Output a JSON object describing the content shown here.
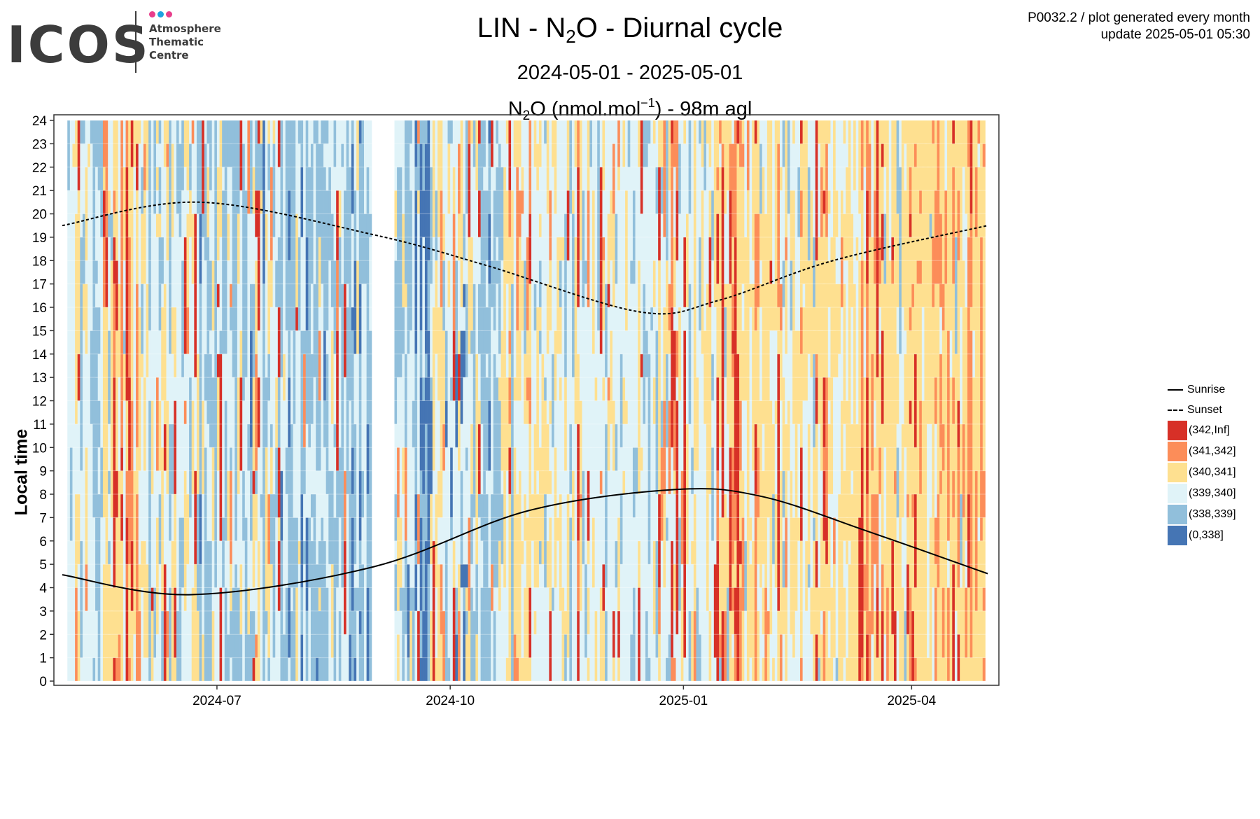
{
  "logo": {
    "wordmark": "ICOS",
    "line1": "Atmosphere",
    "line2": "Thematic",
    "line3": "Centre",
    "dot_colors": [
      "#e83e8c",
      "#1fa2e0",
      "#e83e8c"
    ]
  },
  "header": {
    "product": "P0032.2 / plot generated every month",
    "update": "update  2025-05-01 05:30"
  },
  "title": {
    "station": "LIN",
    "gas_base": "N",
    "gas_sub": "2",
    "gas_tail": "O",
    "suffix": "Diurnal cycle",
    "sep": " - "
  },
  "subtitle": "2024-05-01 - 2025-05-01",
  "subtitle2": {
    "base": "N",
    "sub": "2",
    "mid": "O (nmol.mol",
    "sup": "−1",
    "tail": ") - 98m agl"
  },
  "chart_data": {
    "type": "heatmap",
    "x_start": "2024-05-01",
    "x_end": "2025-05-01",
    "xticks": [
      "2024-07",
      "2024-10",
      "2025-01",
      "2025-04"
    ],
    "ylabel": "Local time",
    "ylim": [
      0,
      24
    ],
    "yticks": [
      0,
      1,
      2,
      3,
      4,
      5,
      6,
      7,
      8,
      9,
      10,
      11,
      12,
      13,
      14,
      15,
      16,
      17,
      18,
      19,
      20,
      21,
      22,
      23,
      24
    ],
    "grid": true,
    "legend_position": "right",
    "lines": [
      {
        "name": "Sunrise",
        "style": "solid",
        "points": [
          [
            "2024-05-01",
            4.55
          ],
          [
            "2024-06-21",
            3.7
          ],
          [
            "2024-09-01",
            4.9
          ],
          [
            "2024-11-01",
            7.3
          ],
          [
            "2024-12-29",
            8.2
          ],
          [
            "2025-02-01",
            7.9
          ],
          [
            "2025-03-15",
            6.4
          ],
          [
            "2025-05-01",
            4.6
          ]
        ]
      },
      {
        "name": "Sunset",
        "style": "dashed",
        "points": [
          [
            "2024-05-01",
            19.5
          ],
          [
            "2024-06-24",
            20.5
          ],
          [
            "2024-09-01",
            19.1
          ],
          [
            "2024-10-15",
            17.8
          ],
          [
            "2024-12-15",
            15.8
          ],
          [
            "2025-01-15",
            16.3
          ],
          [
            "2025-03-01",
            18.0
          ],
          [
            "2025-05-01",
            19.5
          ]
        ]
      }
    ],
    "bins": [
      {
        "label": "(342,Inf]",
        "color": "#d73027"
      },
      {
        "label": "(341,342]",
        "color": "#fc8d59"
      },
      {
        "label": "(340,341]",
        "color": "#fee090"
      },
      {
        "label": "(339,340]",
        "color": "#e0f3f8"
      },
      {
        "label": "(338,339]",
        "color": "#91bfdb"
      },
      {
        "label": "(0,338]",
        "color": "#4575b4"
      }
    ],
    "gaps": [
      [
        "2024-05-01",
        "2024-05-03"
      ],
      [
        "2024-08-31",
        "2024-09-09"
      ]
    ],
    "periods": [
      {
        "start": "2024-05-03",
        "end": "2024-05-11",
        "dist": [
          0.0,
          0.05,
          0.3,
          0.45,
          0.2,
          0.0
        ]
      },
      {
        "start": "2024-05-11",
        "end": "2024-05-17",
        "dist": [
          0.0,
          0.03,
          0.12,
          0.5,
          0.35,
          0.0
        ]
      },
      {
        "start": "2024-05-17",
        "end": "2024-06-03",
        "dist": [
          0.07,
          0.18,
          0.4,
          0.25,
          0.1,
          0.0
        ]
      },
      {
        "start": "2024-06-03",
        "end": "2024-06-20",
        "dist": [
          0.02,
          0.07,
          0.25,
          0.36,
          0.3,
          0.0
        ]
      },
      {
        "start": "2024-06-20",
        "end": "2024-07-25",
        "dist": [
          0.01,
          0.03,
          0.15,
          0.31,
          0.47,
          0.03
        ]
      },
      {
        "start": "2024-07-25",
        "end": "2024-08-31",
        "dist": [
          0.01,
          0.03,
          0.1,
          0.33,
          0.48,
          0.05
        ]
      },
      {
        "start": "2024-09-09",
        "end": "2024-09-14",
        "dist": [
          0.02,
          0.05,
          0.15,
          0.35,
          0.35,
          0.08
        ]
      },
      {
        "start": "2024-09-14",
        "end": "2024-09-23",
        "dist": [
          0.0,
          0.02,
          0.1,
          0.3,
          0.4,
          0.18
        ]
      },
      {
        "start": "2024-09-23",
        "end": "2024-10-10",
        "dist": [
          0.05,
          0.13,
          0.27,
          0.3,
          0.2,
          0.05
        ]
      },
      {
        "start": "2024-10-10",
        "end": "2024-10-22",
        "dist": [
          0.0,
          0.02,
          0.12,
          0.36,
          0.47,
          0.03
        ]
      },
      {
        "start": "2024-10-22",
        "end": "2024-11-06",
        "dist": [
          0.05,
          0.15,
          0.4,
          0.3,
          0.1,
          0.0
        ]
      },
      {
        "start": "2024-11-06",
        "end": "2024-11-25",
        "dist": [
          0.02,
          0.05,
          0.28,
          0.45,
          0.2,
          0.0
        ]
      },
      {
        "start": "2024-11-25",
        "end": "2024-12-22",
        "dist": [
          0.0,
          0.03,
          0.22,
          0.55,
          0.2,
          0.0
        ]
      },
      {
        "start": "2024-12-22",
        "end": "2025-01-02",
        "dist": [
          0.2,
          0.1,
          0.2,
          0.35,
          0.15,
          0.0
        ]
      },
      {
        "start": "2025-01-02",
        "end": "2025-01-14",
        "dist": [
          0.0,
          0.03,
          0.35,
          0.5,
          0.12,
          0.0
        ]
      },
      {
        "start": "2025-01-14",
        "end": "2025-01-24",
        "dist": [
          0.25,
          0.25,
          0.3,
          0.15,
          0.05,
          0.0
        ]
      },
      {
        "start": "2025-01-24",
        "end": "2025-02-28",
        "dist": [
          0.02,
          0.1,
          0.48,
          0.35,
          0.05,
          0.0
        ]
      },
      {
        "start": "2025-02-28",
        "end": "2025-03-12",
        "dist": [
          0.02,
          0.05,
          0.4,
          0.45,
          0.08,
          0.0
        ]
      },
      {
        "start": "2025-03-12",
        "end": "2025-03-20",
        "dist": [
          0.3,
          0.25,
          0.3,
          0.15,
          0.0,
          0.0
        ]
      },
      {
        "start": "2025-03-20",
        "end": "2025-04-08",
        "dist": [
          0.02,
          0.08,
          0.55,
          0.33,
          0.02,
          0.0
        ]
      },
      {
        "start": "2025-04-08",
        "end": "2025-04-30",
        "dist": [
          0.1,
          0.3,
          0.4,
          0.17,
          0.03,
          0.0
        ]
      }
    ]
  }
}
